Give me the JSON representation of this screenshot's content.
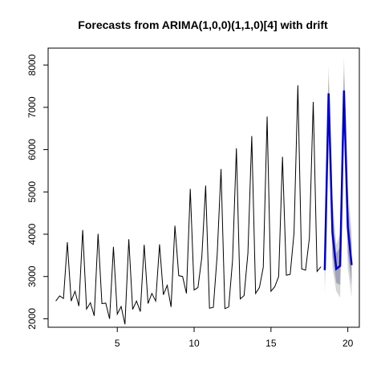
{
  "chart_data": {
    "type": "line",
    "title": "Forecasts from ARIMA(1,0,0)(1,1,0)[4] with drift",
    "xlabel": "",
    "ylabel": "",
    "xlim": [
      0.5,
      20.75
    ],
    "ylim": [
      1800,
      8400
    ],
    "x_ticks": [
      5,
      10,
      15,
      20
    ],
    "y_ticks": [
      2000,
      3000,
      4000,
      5000,
      6000,
      7000,
      8000
    ],
    "grid": false,
    "colors": {
      "history": "#000000",
      "forecast": "#0000cd",
      "band80": "#a3a3bd",
      "band95": "#d6d6d6"
    },
    "history": {
      "start": 1,
      "frequency": 4,
      "values": [
        2420,
        2540,
        2480,
        3810,
        2420,
        2650,
        2300,
        4100,
        2230,
        2380,
        2070,
        4010,
        2360,
        2370,
        2000,
        3700,
        2110,
        2290,
        1870,
        3880,
        2220,
        2420,
        2170,
        3750,
        2360,
        2600,
        2420,
        3760,
        2570,
        2790,
        2280,
        4200,
        3020,
        3000,
        2600,
        5070,
        2680,
        2740,
        3450,
        5150,
        2250,
        2270,
        3510,
        5540,
        2240,
        2280,
        3380,
        6030,
        2470,
        2550,
        3550,
        6320,
        2600,
        2740,
        3220,
        6780,
        2650,
        2760,
        3000,
        5830,
        3030,
        3050,
        4030,
        7520,
        3180,
        3150,
        3910,
        7130,
        3120,
        3230
      ]
    },
    "forecast": {
      "start": 18.5,
      "frequency": 4,
      "mean": [
        3150,
        7330,
        4040,
        3180,
        3250,
        7400,
        4160,
        3270
      ],
      "lo80": [
        2800,
        6900,
        3500,
        2850,
        2800,
        6900,
        3550,
        2800
      ],
      "hi80": [
        3500,
        7750,
        4550,
        3550,
        3700,
        7900,
        4750,
        3750
      ],
      "lo95": [
        2550,
        6650,
        3200,
        2650,
        2500,
        6600,
        3200,
        2500
      ],
      "hi95": [
        3750,
        8000,
        4850,
        3750,
        4000,
        8200,
        5100,
        4050
      ]
    }
  }
}
